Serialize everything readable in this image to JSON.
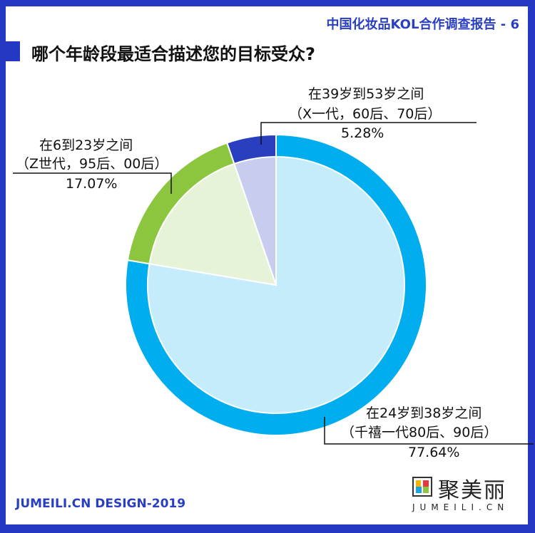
{
  "header": {
    "report_title": "中国化妆品KOL合作调查报告 - 6",
    "question": "哪个年龄段最适合描述您的目标受众?"
  },
  "footer": {
    "credit": "JUMEILI.CN DESIGN-2019",
    "logo_text": "聚美丽",
    "logo_sub": "JUMEILI.CN"
  },
  "chart_data": {
    "type": "pie",
    "title": "哪个年龄段最适合描述您的目标受众?",
    "start": "top",
    "direction": "clockwise",
    "slices": [
      {
        "label_line1": "在24岁到38岁之间",
        "label_line2": "（千禧一代80后、90后）",
        "value_label": "77.64%",
        "value": 77.64,
        "ring_color": "#00aeef",
        "fill_color": "#c5ecfb"
      },
      {
        "label_line1": "在6到23岁之间",
        "label_line2": "（Z世代，95后、00后）",
        "value_label": "17.07%",
        "value": 17.07,
        "ring_color": "#8cc63f",
        "fill_color": "#e7f3d9"
      },
      {
        "label_line1": "在39岁到53岁之间",
        "label_line2": "（X一代，60后、70后）",
        "value_label": "5.28%",
        "value": 5.28,
        "ring_color": "#2a3fc0",
        "fill_color": "#c8ccef"
      }
    ]
  }
}
